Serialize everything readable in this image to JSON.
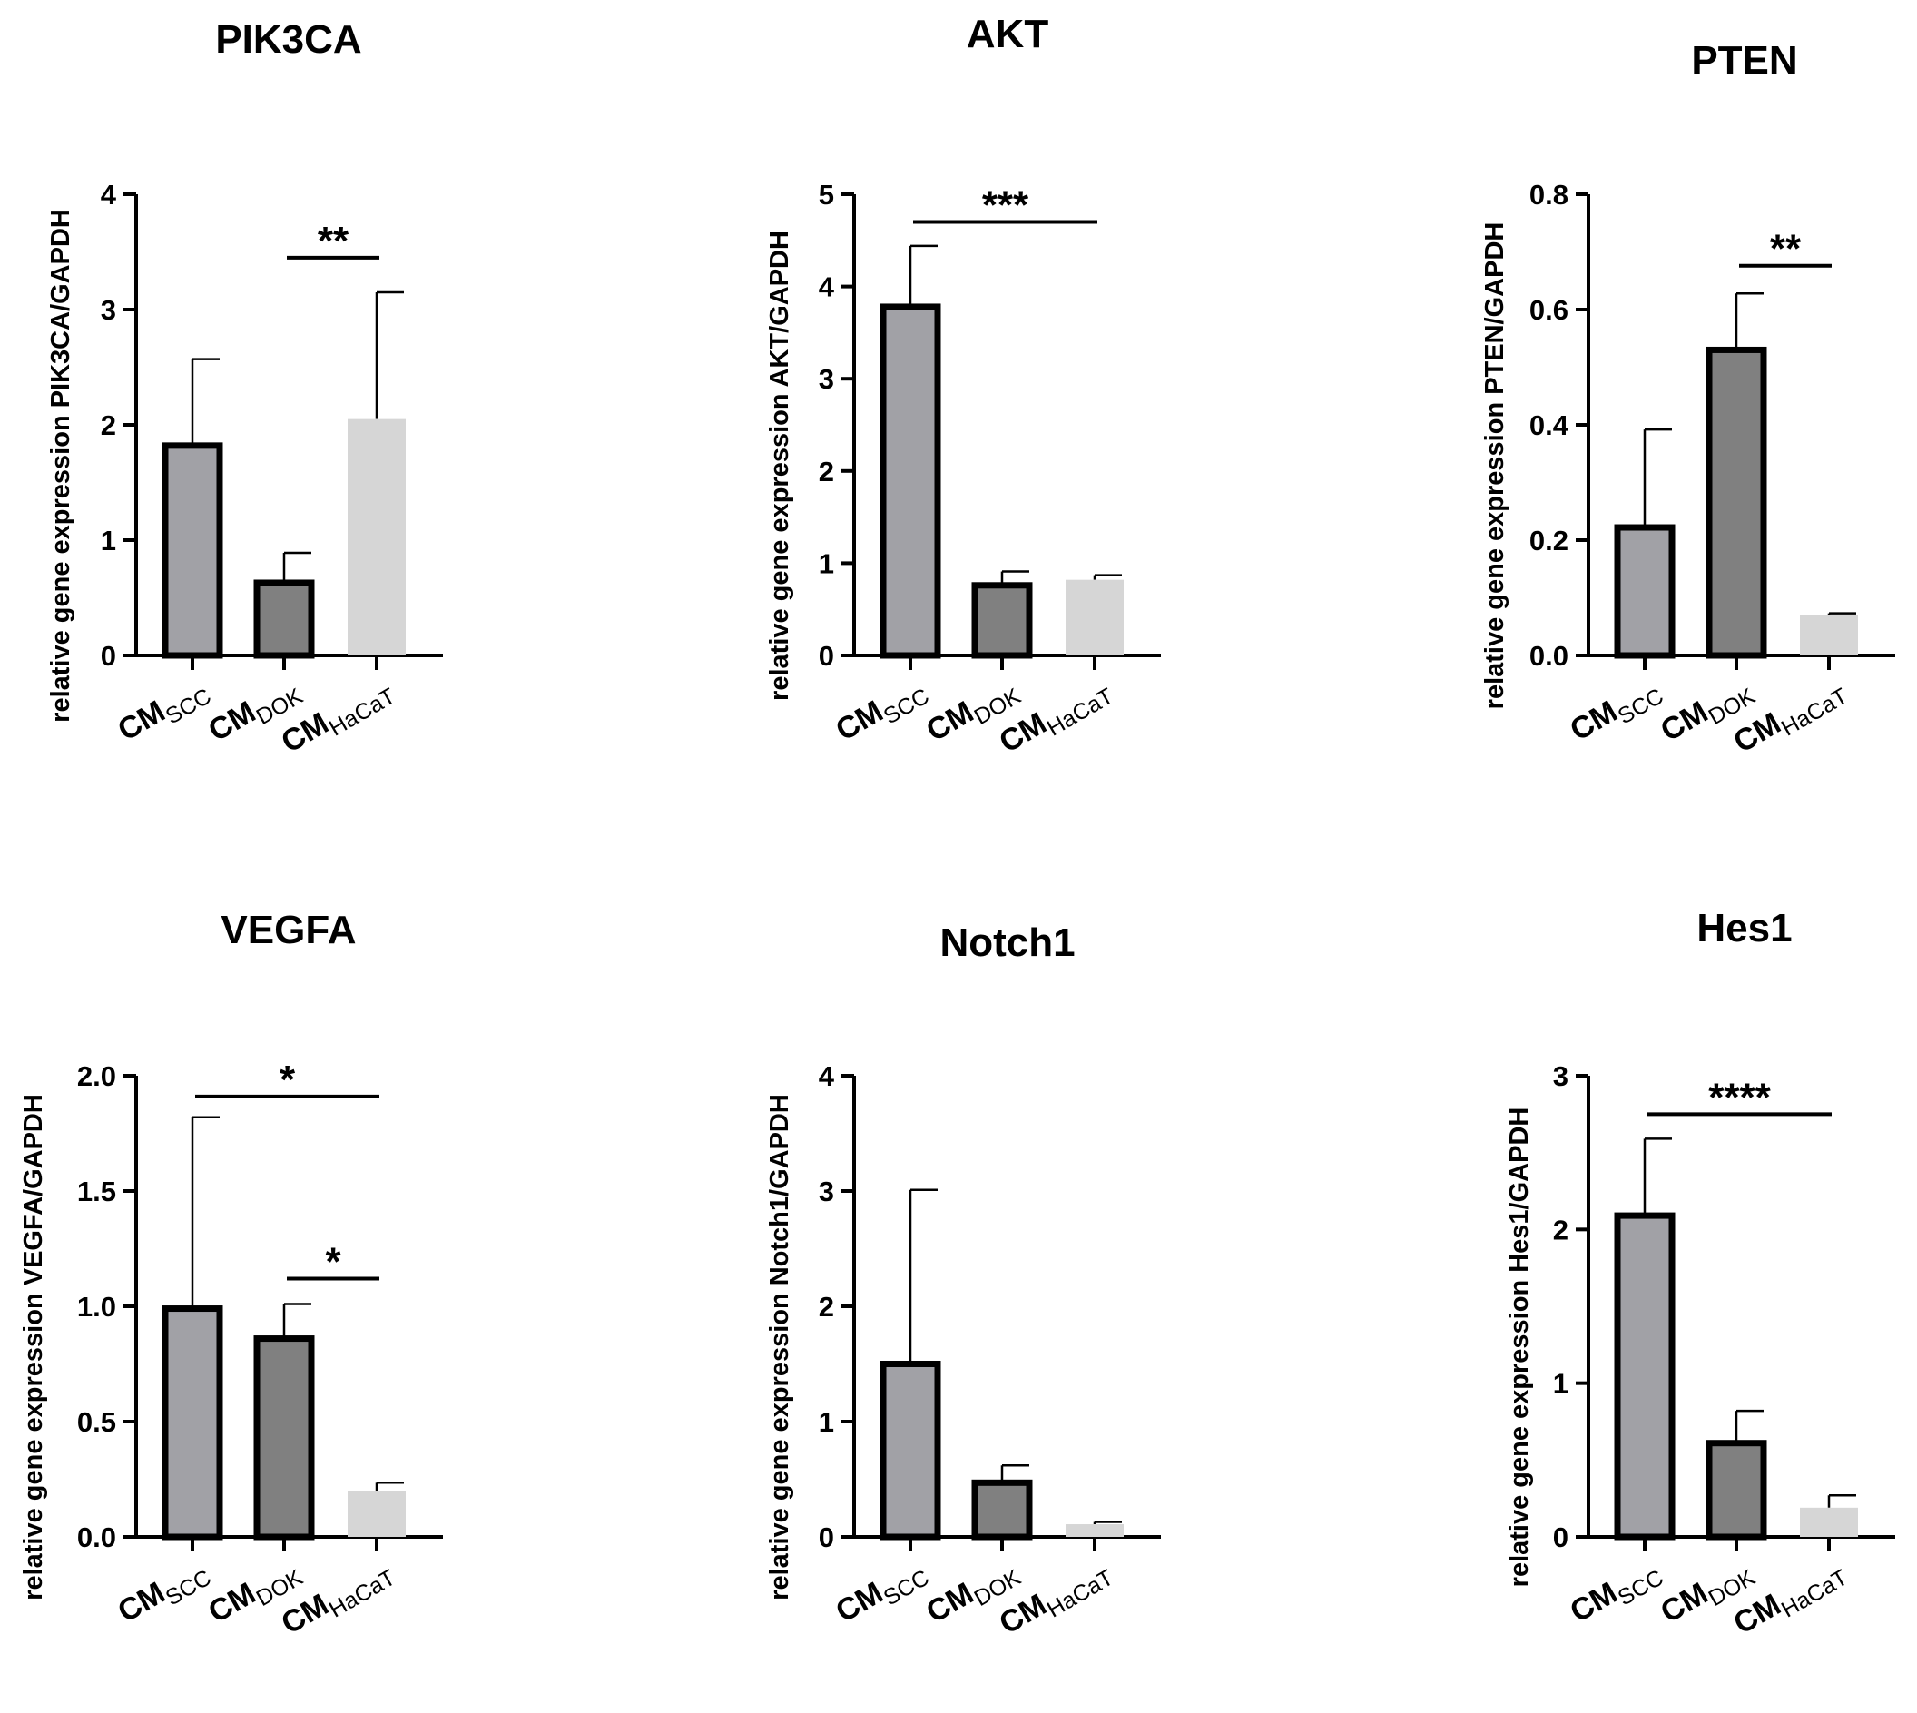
{
  "colors": {
    "scc": "#a1a1a6",
    "dok": "#808080",
    "hacat": "#d6d6d6",
    "ink": "#000000"
  },
  "chart_data": [
    {
      "type": "bar",
      "title": "PIK3CA",
      "ylabel": "relative gene expression PIK3CA/GAPDH",
      "categories": [
        {
          "main": "CM",
          "sub": "SCC"
        },
        {
          "main": "CM",
          "sub": "DOK"
        },
        {
          "main": "CM",
          "sub": "HaCaT"
        }
      ],
      "values": [
        1.82,
        0.63,
        2.05
      ],
      "errors": [
        0.75,
        0.26,
        1.1
      ],
      "ylim": [
        0,
        4
      ],
      "ticks": [
        "0",
        "1",
        "2",
        "3",
        "4"
      ],
      "significance": [
        {
          "from": 1,
          "to": 2,
          "y": 3.45,
          "label": "**"
        }
      ]
    },
    {
      "type": "bar",
      "title": "AKT",
      "ylabel": "relative gene expression AKT/GAPDH",
      "categories": [
        {
          "main": "CM",
          "sub": "SCC"
        },
        {
          "main": "CM",
          "sub": "DOK"
        },
        {
          "main": "CM",
          "sub": "HaCaT"
        }
      ],
      "values": [
        3.78,
        0.76,
        0.82
      ],
      "errors": [
        0.66,
        0.15,
        0.05
      ],
      "ylim": [
        0,
        5
      ],
      "ticks": [
        "0",
        "1",
        "2",
        "3",
        "4",
        "5"
      ],
      "significance": [
        {
          "from": 0,
          "to": 2,
          "y": 4.7,
          "label": "***"
        }
      ]
    },
    {
      "type": "bar",
      "title": "PTEN",
      "ylabel": "relative gene expression PTEN/GAPDH",
      "categories": [
        {
          "main": "CM",
          "sub": "SCC"
        },
        {
          "main": "CM",
          "sub": "DOK"
        },
        {
          "main": "CM",
          "sub": "HaCaT"
        }
      ],
      "values": [
        0.222,
        0.53,
        0.07
      ],
      "errors": [
        0.17,
        0.098,
        0.003
      ],
      "ylim": [
        0,
        0.8
      ],
      "ticks": [
        "0.0",
        "0.2",
        "0.4",
        "0.6",
        "0.8"
      ],
      "significance": [
        {
          "from": 1,
          "to": 2,
          "y": 0.676,
          "label": "**"
        }
      ]
    },
    {
      "type": "bar",
      "title": "VEGFA",
      "ylabel": "relative gene expression VEGFA/GAPDH",
      "categories": [
        {
          "main": "CM",
          "sub": "SCC"
        },
        {
          "main": "CM",
          "sub": "DOK"
        },
        {
          "main": "CM",
          "sub": "HaCaT"
        }
      ],
      "values": [
        0.99,
        0.86,
        0.2
      ],
      "errors": [
        0.83,
        0.15,
        0.035
      ],
      "ylim": [
        0,
        2.0
      ],
      "ticks": [
        "0.0",
        "0.5",
        "1.0",
        "1.5",
        "2.0"
      ],
      "significance": [
        {
          "from": 0,
          "to": 2,
          "y": 1.91,
          "label": "*"
        },
        {
          "from": 1,
          "to": 2,
          "y": 1.12,
          "label": "*"
        }
      ]
    },
    {
      "type": "bar",
      "title": "Notch1",
      "ylabel": "relative gene expression Notch1/GAPDH",
      "categories": [
        {
          "main": "CM",
          "sub": "SCC"
        },
        {
          "main": "CM",
          "sub": "DOK"
        },
        {
          "main": "CM",
          "sub": "HaCaT"
        }
      ],
      "values": [
        1.5,
        0.47,
        0.11
      ],
      "errors": [
        1.51,
        0.15,
        0.02
      ],
      "ylim": [
        0,
        4
      ],
      "ticks": [
        "0",
        "1",
        "2",
        "3",
        "4"
      ],
      "significance": []
    },
    {
      "type": "bar",
      "title": "Hes1",
      "ylabel": "relative gene expression Hes1/GAPDH",
      "categories": [
        {
          "main": "CM",
          "sub": "SCC"
        },
        {
          "main": "CM",
          "sub": "DOK"
        },
        {
          "main": "CM",
          "sub": "HaCaT"
        }
      ],
      "values": [
        2.09,
        0.61,
        0.19
      ],
      "errors": [
        0.5,
        0.21,
        0.08
      ],
      "ylim": [
        0,
        3
      ],
      "ticks": [
        "0",
        "1",
        "2",
        "3"
      ],
      "significance": [
        {
          "from": 0,
          "to": 2,
          "y": 2.75,
          "label": "****"
        }
      ]
    }
  ]
}
